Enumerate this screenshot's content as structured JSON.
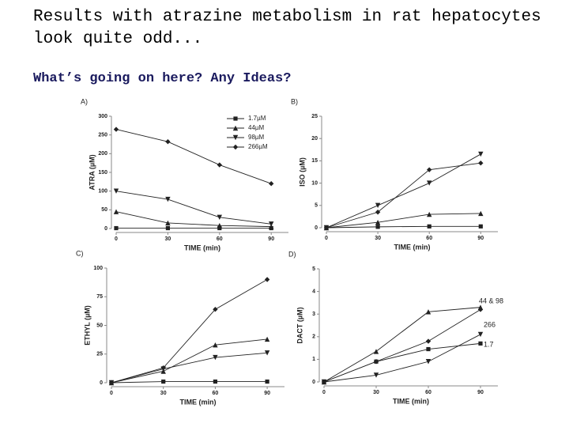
{
  "header": {
    "title_lines": [
      "Results with atrazine metabolism in rat hepatocytes",
      "look quite odd..."
    ],
    "subtitle": "What’s going on here? Any Ideas?"
  },
  "chart_data": [
    {
      "type": "line",
      "panel": "A)",
      "x_label": "TIME (min)",
      "y_label": "ATRA (µM)",
      "x": [
        0,
        30,
        60,
        90
      ],
      "xlim": [
        0,
        100
      ],
      "xticks": [
        0,
        30,
        60,
        90
      ],
      "ylim": [
        0,
        300
      ],
      "yticks": [
        0,
        50,
        100,
        150,
        200,
        250,
        300
      ],
      "legend": "top-right",
      "series": [
        {
          "name": "1.7µM",
          "color": "#222222",
          "marker": "square",
          "values": [
            1,
            1,
            1,
            1
          ]
        },
        {
          "name": "44µM",
          "color": "#222222",
          "marker": "triangle-up",
          "values": [
            45,
            15,
            8,
            5
          ]
        },
        {
          "name": "98µM",
          "color": "#222222",
          "marker": "triangle-down",
          "values": [
            100,
            78,
            30,
            12
          ]
        },
        {
          "name": "266µM",
          "color": "#222222",
          "marker": "diamond",
          "values": [
            265,
            232,
            170,
            120
          ]
        }
      ]
    },
    {
      "type": "line",
      "panel": "B)",
      "x_label": "TIME (min)",
      "y_label": "ISO (µM)",
      "x": [
        0,
        30,
        60,
        90
      ],
      "xlim": [
        0,
        100
      ],
      "xticks": [
        0,
        30,
        60,
        90
      ],
      "ylim": [
        0,
        25
      ],
      "yticks": [
        0,
        5,
        10,
        15,
        20,
        25
      ],
      "series": [
        {
          "color": "#222222",
          "marker": "square",
          "values": [
            0,
            0.2,
            0.3,
            0.3
          ]
        },
        {
          "color": "#222222",
          "marker": "triangle-up",
          "values": [
            0,
            1.2,
            3,
            3.2
          ]
        },
        {
          "color": "#222222",
          "marker": "triangle-down",
          "values": [
            0,
            5,
            10,
            16.5
          ]
        },
        {
          "color": "#222222",
          "marker": "diamond",
          "values": [
            0,
            3.5,
            13,
            14.5
          ]
        }
      ]
    },
    {
      "type": "line",
      "panel": "C)",
      "x_label": "TIME (min)",
      "y_label": "ETHYL (µM)",
      "x": [
        0,
        30,
        60,
        90
      ],
      "xlim": [
        0,
        100
      ],
      "xticks": [
        0,
        30,
        60,
        90
      ],
      "ylim": [
        0,
        100
      ],
      "yticks": [
        0,
        25,
        50,
        75,
        100
      ],
      "series": [
        {
          "color": "#222222",
          "marker": "square",
          "values": [
            0,
            1,
            1,
            1
          ]
        },
        {
          "color": "#222222",
          "marker": "triangle-up",
          "values": [
            0,
            10,
            33,
            38
          ]
        },
        {
          "color": "#222222",
          "marker": "triangle-down",
          "values": [
            0,
            12,
            22,
            26
          ]
        },
        {
          "color": "#222222",
          "marker": "diamond",
          "values": [
            0,
            13,
            64,
            90
          ]
        }
      ]
    },
    {
      "type": "line",
      "panel": "D)",
      "x_label": "TIME (min)",
      "y_label": "DACT (µM)",
      "x": [
        0,
        30,
        60,
        90
      ],
      "xlim": [
        0,
        100
      ],
      "xticks": [
        0,
        30,
        60,
        90
      ],
      "ylim": [
        0,
        5
      ],
      "yticks": [
        0,
        1,
        2,
        3,
        4,
        5
      ],
      "annotations": [
        "44 & 98",
        "266",
        "1.7"
      ],
      "series": [
        {
          "color": "#222222",
          "marker": "square",
          "values": [
            0,
            0.9,
            1.45,
            1.7
          ]
        },
        {
          "color": "#222222",
          "marker": "triangle-up",
          "values": [
            0,
            1.35,
            3.1,
            3.3
          ]
        },
        {
          "color": "#222222",
          "marker": "triangle-down",
          "values": [
            0,
            0.3,
            0.9,
            2.1
          ]
        },
        {
          "color": "#222222",
          "marker": "diamond",
          "values": [
            0,
            0.9,
            1.8,
            3.2
          ]
        }
      ]
    }
  ]
}
